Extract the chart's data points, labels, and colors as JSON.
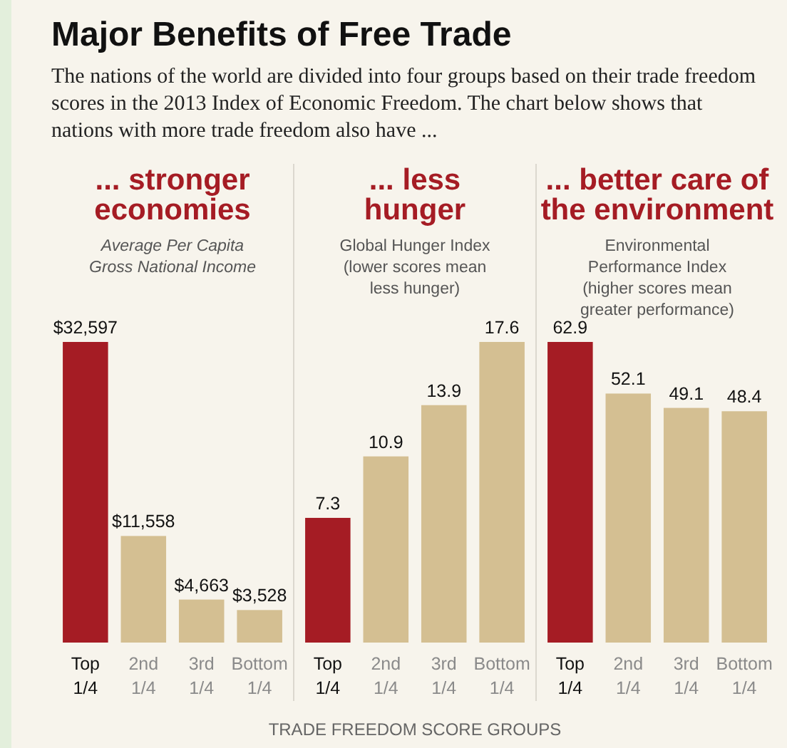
{
  "chart_data": [
    {
      "type": "other",
      "title": "Major Benefits of Free Trade",
      "subtitle": "The nations of the world are divided into four groups based on their trade freedom scores in the 2013 Index of Economic Freedom. The chart below shows that nations with more trade freedom also have ..."
    },
    {
      "type": "bar",
      "title": "... stronger\neconomies",
      "subtitle": "Average Per Capita\nGross National Income",
      "categories": [
        "Top 1/4",
        "2nd 1/4",
        "3rd 1/4",
        "Bottom 1/4"
      ],
      "values": [
        32597,
        11558,
        4663,
        3528
      ],
      "value_labels": [
        "$32,597",
        "$11,558",
        "$4,663",
        "$3,528"
      ],
      "colors": [
        "#a51c24",
        "#d4bf92",
        "#d4bf92",
        "#d4bf92"
      ]
    },
    {
      "type": "bar",
      "title": "... less\nhunger",
      "subtitle": "Global Hunger Index\n(lower scores mean\nless hunger)",
      "xlabel": "TRADE FREEDOM SCORE GROUPS",
      "categories": [
        "Top 1/4",
        "2nd 1/4",
        "3rd 1/4",
        "Bottom 1/4"
      ],
      "values": [
        7.3,
        10.9,
        13.9,
        17.6
      ],
      "data_labels": true,
      "colors": [
        "#a51c24",
        "#d4bf92",
        "#d4bf92",
        "#d4bf92"
      ]
    },
    {
      "type": "bar",
      "title": "... better care of\nthe environment",
      "subtitle": "Environmental\nPerformance Index\n(higher scores mean\ngreater performance)",
      "categories": [
        "Top 1/4",
        "2nd 1/4",
        "3rd 1/4",
        "Bottom 1/4"
      ],
      "values": [
        62.9,
        52.1,
        49.1,
        48.4
      ],
      "data_labels": true,
      "colors": [
        "#a51c24",
        "#d4bf92",
        "#d4bf92",
        "#d4bf92"
      ]
    }
  ]
}
